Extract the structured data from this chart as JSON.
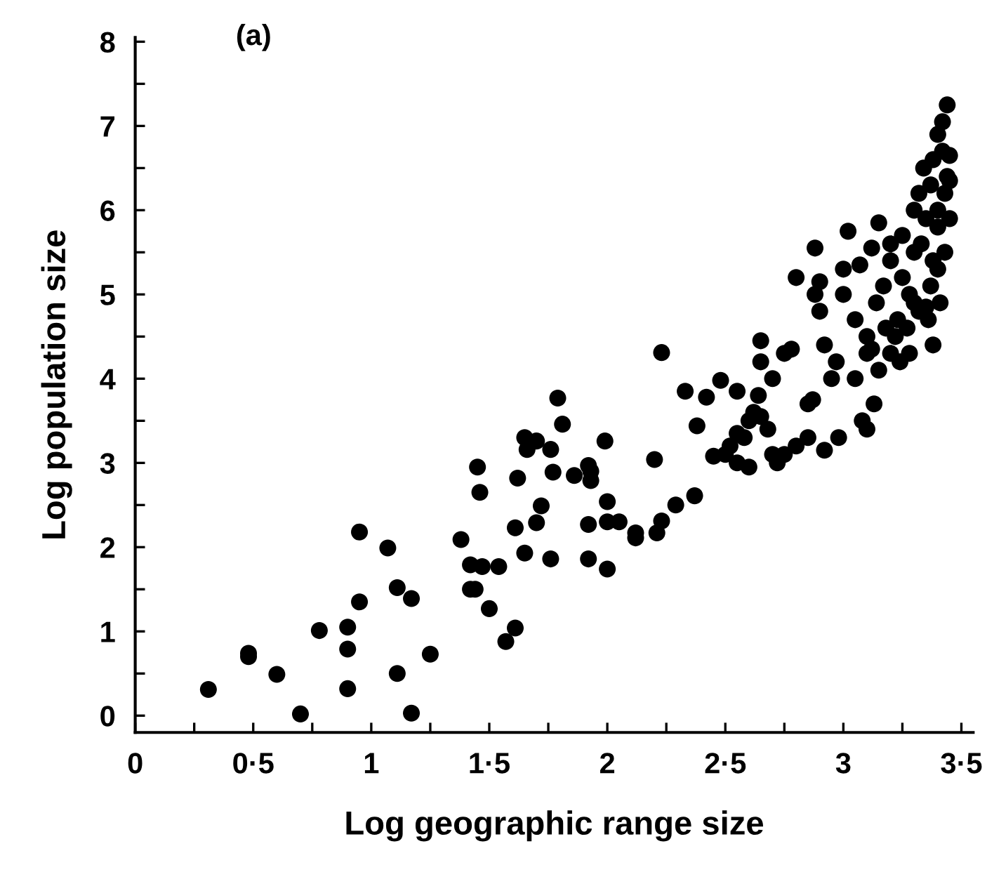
{
  "chart_data": {
    "type": "scatter",
    "title": "(a)",
    "xlabel": "Log geographic range size",
    "ylabel": "Log population size",
    "xlim": [
      0,
      3.55
    ],
    "ylim": [
      -0.2,
      8.05
    ],
    "xticks": [
      0,
      {
        "value": 0.25,
        "label": null
      },
      {
        "value": 0.5,
        "label": "0·5"
      },
      {
        "value": 0.75,
        "label": null
      },
      1,
      {
        "value": 1.25,
        "label": null
      },
      {
        "value": 1.5,
        "label": "1·5"
      },
      {
        "value": 1.75,
        "label": null
      },
      2,
      {
        "value": 2.25,
        "label": null
      },
      {
        "value": 2.5,
        "label": "2·5"
      },
      {
        "value": 2.75,
        "label": null
      },
      3,
      {
        "value": 3.25,
        "label": null
      },
      {
        "value": 3.5,
        "label": "3·5"
      }
    ],
    "yticks": [
      0,
      {
        "value": 0.5,
        "label": null
      },
      1,
      {
        "value": 1.5,
        "label": null
      },
      2,
      {
        "value": 2.5,
        "label": null
      },
      3,
      {
        "value": 3.5,
        "label": null
      },
      4,
      {
        "value": 4.5,
        "label": null
      },
      5,
      {
        "value": 5.5,
        "label": null
      },
      6,
      {
        "value": 6.5,
        "label": null
      },
      7,
      {
        "value": 7.5,
        "label": null
      },
      8
    ],
    "grid": false,
    "legend": false,
    "marker": "circle",
    "series": [
      {
        "color": "#000000",
        "x": [
          0.31,
          0.48,
          0.48,
          0.6,
          0.7,
          0.78,
          0.9,
          0.9,
          0.9,
          0.95,
          0.95,
          1.07,
          1.11,
          1.11,
          1.17,
          1.17,
          1.25,
          1.38,
          1.42,
          1.47,
          1.42,
          1.44,
          1.54,
          1.5,
          1.45,
          1.46,
          1.61,
          1.57,
          1.61,
          1.65,
          1.62,
          1.7,
          1.72,
          1.65,
          1.7,
          1.66,
          1.76,
          1.79,
          1.81,
          1.99,
          1.77,
          1.86,
          1.92,
          1.93,
          1.93,
          2.0,
          2.29,
          2.37,
          1.76,
          1.92,
          1.92,
          2.0,
          2.05,
          2.0,
          2.12,
          2.12,
          2.21,
          2.23,
          2.23,
          2.33,
          2.42,
          2.48,
          2.38,
          2.45,
          2.2,
          2.52,
          2.55,
          2.58,
          2.6,
          2.6,
          2.62,
          2.64,
          2.65,
          2.65,
          2.68,
          2.7,
          2.72,
          2.7,
          2.75,
          2.78,
          2.8,
          2.8,
          2.85,
          2.85,
          2.87,
          2.88,
          2.88,
          2.9,
          2.9,
          2.92,
          2.92,
          2.95,
          2.97,
          2.98,
          3.0,
          3.0,
          3.02,
          3.05,
          3.05,
          3.07,
          3.08,
          3.1,
          3.1,
          3.1,
          3.12,
          3.12,
          3.13,
          3.14,
          3.15,
          3.15,
          3.17,
          3.18,
          3.2,
          3.2,
          3.2,
          3.22,
          3.23,
          3.24,
          3.25,
          3.25,
          3.27,
          3.28,
          3.28,
          3.3,
          3.3,
          3.3,
          3.32,
          3.32,
          3.33,
          3.34,
          3.35,
          3.35,
          3.36,
          3.37,
          3.37,
          3.38,
          3.38,
          3.38,
          3.4,
          3.4,
          3.4,
          3.4,
          3.41,
          3.42,
          3.42,
          3.43,
          3.43,
          3.44,
          3.44,
          3.45,
          3.45,
          3.45,
          2.75,
          2.65,
          2.5,
          2.55,
          2.55
        ],
        "values": [
          0.31,
          0.74,
          0.7,
          0.49,
          0.02,
          1.01,
          1.05,
          0.79,
          0.32,
          2.18,
          1.35,
          1.99,
          1.52,
          0.5,
          1.39,
          0.03,
          0.73,
          2.09,
          1.79,
          1.77,
          1.5,
          1.5,
          1.77,
          1.27,
          2.95,
          2.65,
          1.04,
          0.88,
          2.23,
          1.93,
          2.82,
          2.29,
          2.49,
          3.3,
          3.26,
          3.16,
          3.16,
          3.77,
          3.46,
          3.26,
          2.89,
          2.85,
          2.97,
          2.9,
          2.79,
          2.54,
          2.5,
          2.61,
          1.86,
          2.27,
          1.86,
          2.3,
          2.3,
          1.74,
          2.17,
          2.11,
          2.17,
          2.31,
          4.31,
          3.85,
          3.78,
          3.98,
          3.44,
          3.08,
          3.04,
          3.2,
          3.0,
          3.3,
          3.5,
          2.95,
          3.6,
          3.8,
          4.2,
          4.45,
          3.4,
          3.1,
          3.0,
          4.0,
          4.3,
          4.35,
          5.2,
          3.2,
          3.3,
          3.7,
          3.75,
          5.0,
          5.55,
          5.15,
          4.8,
          4.4,
          3.15,
          4.0,
          4.2,
          3.3,
          5.3,
          5.0,
          5.75,
          4.7,
          4.0,
          5.35,
          3.5,
          4.3,
          4.5,
          3.4,
          5.55,
          4.35,
          3.7,
          4.9,
          5.85,
          4.1,
          5.1,
          4.6,
          4.3,
          5.4,
          5.6,
          4.5,
          4.7,
          4.2,
          5.7,
          5.2,
          4.6,
          5.0,
          4.3,
          5.5,
          4.9,
          6.0,
          6.2,
          4.8,
          5.6,
          6.5,
          5.9,
          4.85,
          4.7,
          6.3,
          5.1,
          6.6,
          5.4,
          4.4,
          6.9,
          6.0,
          5.8,
          5.3,
          4.9,
          7.05,
          6.7,
          6.2,
          5.5,
          7.25,
          6.4,
          6.65,
          5.9,
          6.35,
          3.1,
          3.55,
          3.1,
          3.85,
          3.35
        ]
      }
    ]
  }
}
